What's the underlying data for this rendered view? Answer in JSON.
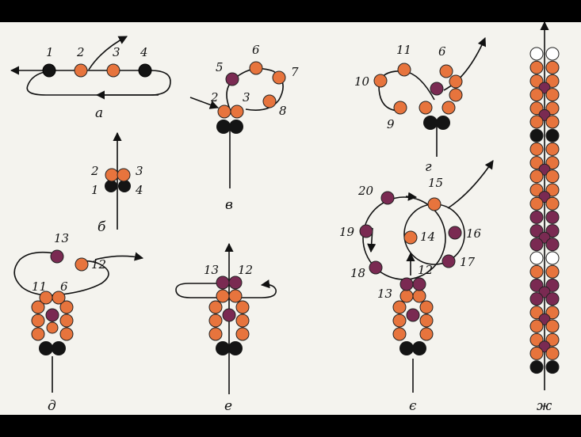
{
  "colors": {
    "background": "#f4f3ee",
    "bead_orange": "#e7743d",
    "bead_purple": "#7a2a52",
    "bead_black": "#141414",
    "bead_white": "#ffffff",
    "thread": "#111111"
  },
  "panels": [
    {
      "caption": "а",
      "labels": [
        "1",
        "2",
        "3",
        "4"
      ]
    },
    {
      "caption": "б",
      "labels": [
        "2",
        "3",
        "1",
        "4"
      ]
    },
    {
      "caption": "в",
      "labels": [
        "5",
        "6",
        "7",
        "2",
        "3",
        "8"
      ]
    },
    {
      "caption": "г",
      "labels": [
        "11",
        "6",
        "10",
        "9"
      ]
    },
    {
      "caption": "д",
      "labels": [
        "13",
        "12",
        "11",
        "6"
      ]
    },
    {
      "caption": "е",
      "labels": [
        "13",
        "12"
      ]
    },
    {
      "caption": "є",
      "labels": [
        "15",
        "20",
        "19",
        "14",
        "16",
        "12",
        "17",
        "18",
        "13"
      ]
    },
    {
      "caption": "ж",
      "labels": []
    }
  ]
}
